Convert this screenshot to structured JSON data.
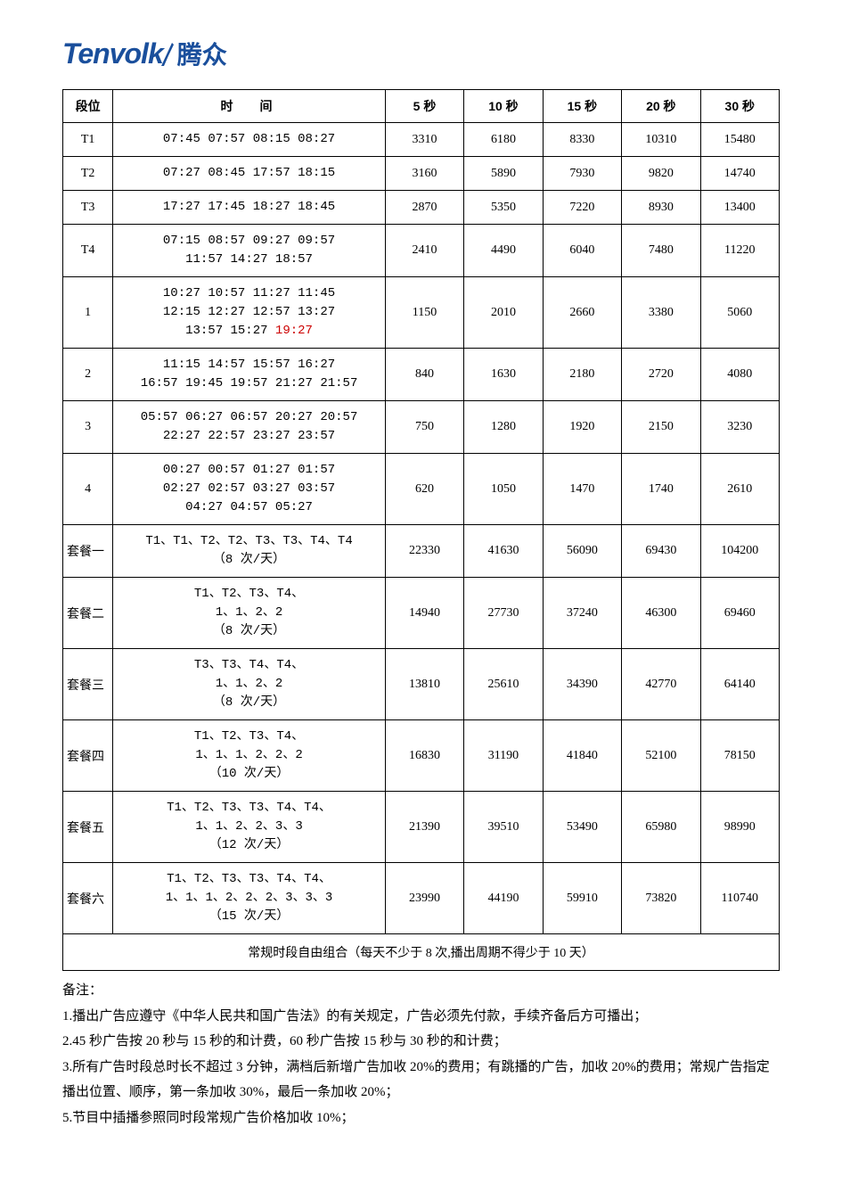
{
  "logo": {
    "en": "Tenvolk",
    "cn": "腾众",
    "color": "#1a4f9c"
  },
  "table": {
    "headers": {
      "segment": "段位",
      "time": "时间",
      "sec5": "5 秒",
      "sec10": "10 秒",
      "sec15": "15 秒",
      "sec20": "20 秒",
      "sec30": "30 秒"
    },
    "rows": [
      {
        "seg": "T1",
        "time_lines": [
          "07:45 07:57 08:15 08:27"
        ],
        "p5": "3310",
        "p10": "6180",
        "p15": "8330",
        "p20": "10310",
        "p30": "15480"
      },
      {
        "seg": "T2",
        "time_lines": [
          "07:27 08:45 17:57 18:15"
        ],
        "p5": "3160",
        "p10": "5890",
        "p15": "7930",
        "p20": "9820",
        "p30": "14740"
      },
      {
        "seg": "T3",
        "time_lines": [
          "17:27 17:45 18:27 18:45"
        ],
        "p5": "2870",
        "p10": "5350",
        "p15": "7220",
        "p20": "8930",
        "p30": "13400"
      },
      {
        "seg": "T4",
        "time_lines": [
          "07:15 08:57 09:27 09:57",
          "11:57 14:27 18:57"
        ],
        "p5": "2410",
        "p10": "4490",
        "p15": "6040",
        "p20": "7480",
        "p30": "11220"
      },
      {
        "seg": "1",
        "time_lines": [
          "10:27 10:57 11:27 11:45",
          "12:15 12:27 12:57 13:27",
          "13:57 15:27 "
        ],
        "red_suffix": "19:27",
        "p5": "1150",
        "p10": "2010",
        "p15": "2660",
        "p20": "3380",
        "p30": "5060"
      },
      {
        "seg": "2",
        "time_lines": [
          "11:15 14:57 15:57 16:27",
          "16:57 19:45 19:57 21:27 21:57"
        ],
        "p5": "840",
        "p10": "1630",
        "p15": "2180",
        "p20": "2720",
        "p30": "4080"
      },
      {
        "seg": "3",
        "time_lines": [
          "05:57 06:27 06:57 20:27 20:57",
          "22:27 22:57 23:27 23:57"
        ],
        "p5": "750",
        "p10": "1280",
        "p15": "1920",
        "p20": "2150",
        "p30": "3230"
      },
      {
        "seg": "4",
        "time_lines": [
          "00:27 00:57 01:27 01:57",
          "02:27 02:57 03:27 03:57",
          "04:27 04:57 05:27"
        ],
        "p5": "620",
        "p10": "1050",
        "p15": "1470",
        "p20": "1740",
        "p30": "2610"
      },
      {
        "seg": "套餐一",
        "seg_align": "left",
        "time_lines": [
          "T1、T1、T2、T2、T3、T3、T4、T4",
          "（8 次/天）"
        ],
        "p5": "22330",
        "p10": "41630",
        "p15": "56090",
        "p20": "69430",
        "p30": "104200"
      },
      {
        "seg": "套餐二",
        "seg_align": "left",
        "time_lines": [
          "T1、T2、T3、T4、",
          "1、1、2、2",
          "（8 次/天）"
        ],
        "p5": "14940",
        "p10": "27730",
        "p15": "37240",
        "p20": "46300",
        "p30": "69460"
      },
      {
        "seg": "套餐三",
        "seg_align": "left",
        "time_lines": [
          "T3、T3、T4、T4、",
          "1、1、2、2",
          "（8 次/天）"
        ],
        "p5": "13810",
        "p10": "25610",
        "p15": "34390",
        "p20": "42770",
        "p30": "64140"
      },
      {
        "seg": "套餐四",
        "seg_align": "left",
        "time_lines": [
          "T1、T2、T3、T4、",
          "1、1、1、2、2、2",
          "（10 次/天）"
        ],
        "p5": "16830",
        "p10": "31190",
        "p15": "41840",
        "p20": "52100",
        "p30": "78150"
      },
      {
        "seg": "套餐五",
        "seg_align": "left",
        "time_lines": [
          "T1、T2、T3、T3、T4、T4、",
          "1、1、2、2、3、3",
          "（12 次/天）"
        ],
        "p5": "21390",
        "p10": "39510",
        "p15": "53490",
        "p20": "65980",
        "p30": "98990"
      },
      {
        "seg": "套餐六",
        "seg_align": "left",
        "time_lines": [
          "T1、T2、T3、T3、T4、T4、",
          "1、1、1、2、2、2、3、3、3",
          "（15 次/天）"
        ],
        "p5": "23990",
        "p10": "44190",
        "p15": "59910",
        "p20": "73820",
        "p30": "110740"
      }
    ],
    "footer": "常规时段自由组合（每天不少于 8 次,播出周期不得少于 10 天）"
  },
  "notes": {
    "title": "备注：",
    "items": [
      "1.播出广告应遵守《中华人民共和国广告法》的有关规定，广告必须先付款，手续齐备后方可播出；",
      "2.45 秒广告按 20 秒与 15 秒的和计费，60 秒广告按 15 秒与 30 秒的和计费；",
      "3.所有广告时段总时长不超过 3 分钟，满档后新增广告加收 20%的费用；有跳播的广告，加收 20%的费用；常规广告指定播出位置、顺序，第一条加收 30%，最后一条加收 20%；",
      "5.节目中插播参照同时段常规广告价格加收 10%；"
    ]
  },
  "styles": {
    "background_color": "#ffffff",
    "text_color": "#000000",
    "border_color": "#000000",
    "red_color": "#cc0000",
    "logo_color": "#1a4f9c",
    "base_fontsize": 14,
    "notes_fontsize": 15
  }
}
